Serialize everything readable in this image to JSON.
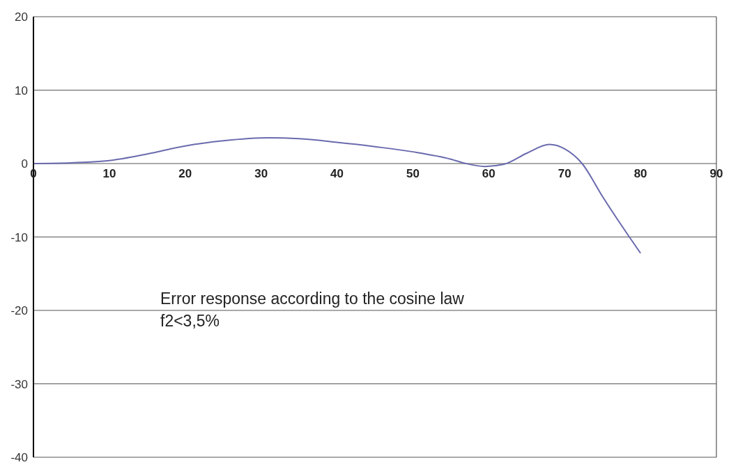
{
  "chart_data": {
    "type": "line",
    "x": [
      0,
      5,
      10,
      15,
      20,
      25,
      31,
      35,
      40,
      45,
      50,
      55,
      57,
      59.5,
      62,
      65,
      68,
      70,
      72.3,
      75,
      78,
      80
    ],
    "series": [
      {
        "color": "#6a6aae",
        "values": [
          0,
          0.1,
          0.4,
          1.3,
          2.4,
          3.1,
          3.5,
          3.4,
          2.9,
          2.3,
          1.6,
          0.6,
          0,
          -0.4,
          -0.1,
          1.4,
          2.6,
          2.0,
          0,
          -4.5,
          -9.2,
          -12.2
        ]
      }
    ],
    "xlim": [
      0,
      90
    ],
    "xticks": [
      0,
      10,
      20,
      30,
      40,
      50,
      60,
      70,
      80,
      90
    ],
    "ylim": [
      -40,
      20
    ],
    "yticks": [
      -40,
      -30,
      -20,
      -10,
      0,
      10,
      20
    ],
    "grid": "y",
    "legend": false,
    "marker": "none",
    "line_style": "solid",
    "annotations": [
      "Error response according to the cosine law",
      "f2<3,5%"
    ]
  }
}
